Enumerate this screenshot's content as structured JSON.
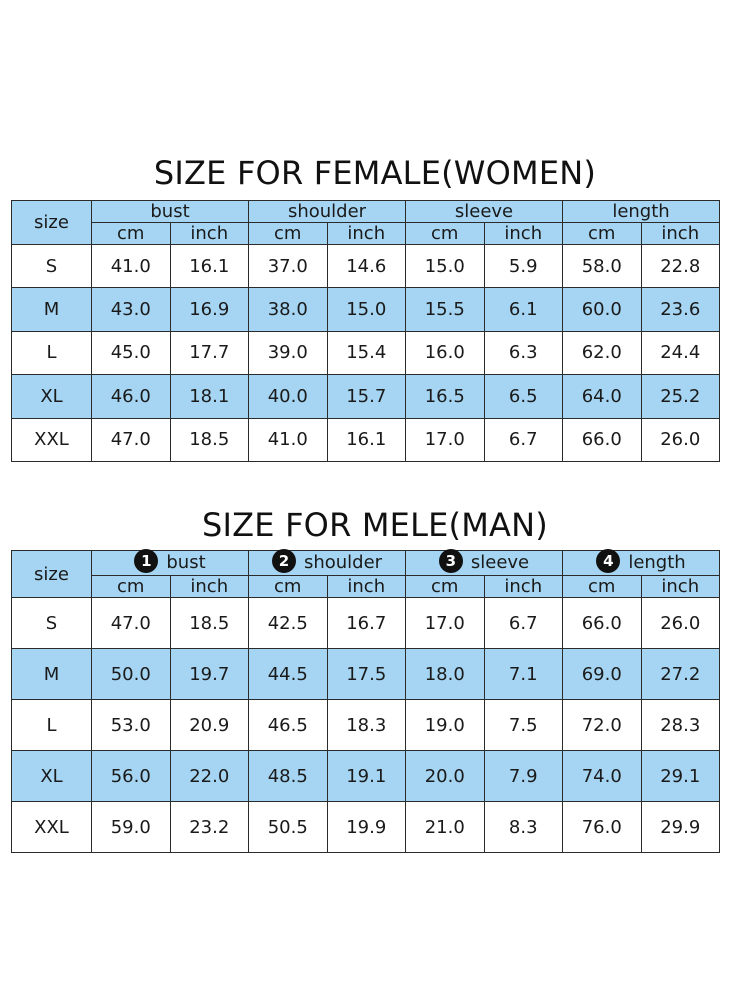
{
  "female": {
    "title": "SIZE FOR FEMALE(WOMEN)",
    "size_label": "size",
    "groups": [
      "bust",
      "shoulder",
      "sleeve",
      "length"
    ],
    "units": [
      "cm",
      "inch",
      "cm",
      "inch",
      "cm",
      "inch",
      "cm",
      "inch"
    ],
    "rows": [
      {
        "size": "S",
        "values": [
          "41.0",
          "16.1",
          "37.0",
          "14.6",
          "15.0",
          "5.9",
          "58.0",
          "22.8"
        ]
      },
      {
        "size": "M",
        "values": [
          "43.0",
          "16.9",
          "38.0",
          "15.0",
          "15.5",
          "6.1",
          "60.0",
          "23.6"
        ]
      },
      {
        "size": "L",
        "values": [
          "45.0",
          "17.7",
          "39.0",
          "15.4",
          "16.0",
          "6.3",
          "62.0",
          "24.4"
        ]
      },
      {
        "size": "XL",
        "values": [
          "46.0",
          "18.1",
          "40.0",
          "15.7",
          "16.5",
          "6.5",
          "64.0",
          "25.2"
        ]
      },
      {
        "size": "XXL",
        "values": [
          "47.0",
          "18.5",
          "41.0",
          "16.1",
          "17.0",
          "6.7",
          "66.0",
          "26.0"
        ]
      }
    ]
  },
  "male": {
    "title": "SIZE FOR MELE(MAN)",
    "size_label": "size",
    "groups": [
      {
        "number": "1",
        "label": "bust"
      },
      {
        "number": "2",
        "label": "shoulder"
      },
      {
        "number": "3",
        "label": "sleeve"
      },
      {
        "number": "4",
        "label": "length"
      }
    ],
    "units": [
      "cm",
      "inch",
      "cm",
      "inch",
      "cm",
      "inch",
      "cm",
      "inch"
    ],
    "rows": [
      {
        "size": "S",
        "values": [
          "47.0",
          "18.5",
          "42.5",
          "16.7",
          "17.0",
          "6.7",
          "66.0",
          "26.0"
        ]
      },
      {
        "size": "M",
        "values": [
          "50.0",
          "19.7",
          "44.5",
          "17.5",
          "18.0",
          "7.1",
          "69.0",
          "27.2"
        ]
      },
      {
        "size": "L",
        "values": [
          "53.0",
          "20.9",
          "46.5",
          "18.3",
          "19.0",
          "7.5",
          "72.0",
          "28.3"
        ]
      },
      {
        "size": "XL",
        "values": [
          "56.0",
          "22.0",
          "48.5",
          "19.1",
          "20.0",
          "7.9",
          "74.0",
          "29.1"
        ]
      },
      {
        "size": "XXL",
        "values": [
          "59.0",
          "23.2",
          "50.5",
          "19.9",
          "21.0",
          "8.3",
          "76.0",
          "29.9"
        ]
      }
    ]
  },
  "colors": {
    "header_fill": "#a5d5f2",
    "border": "#2b2b2b",
    "text": "#1a1a1a"
  }
}
